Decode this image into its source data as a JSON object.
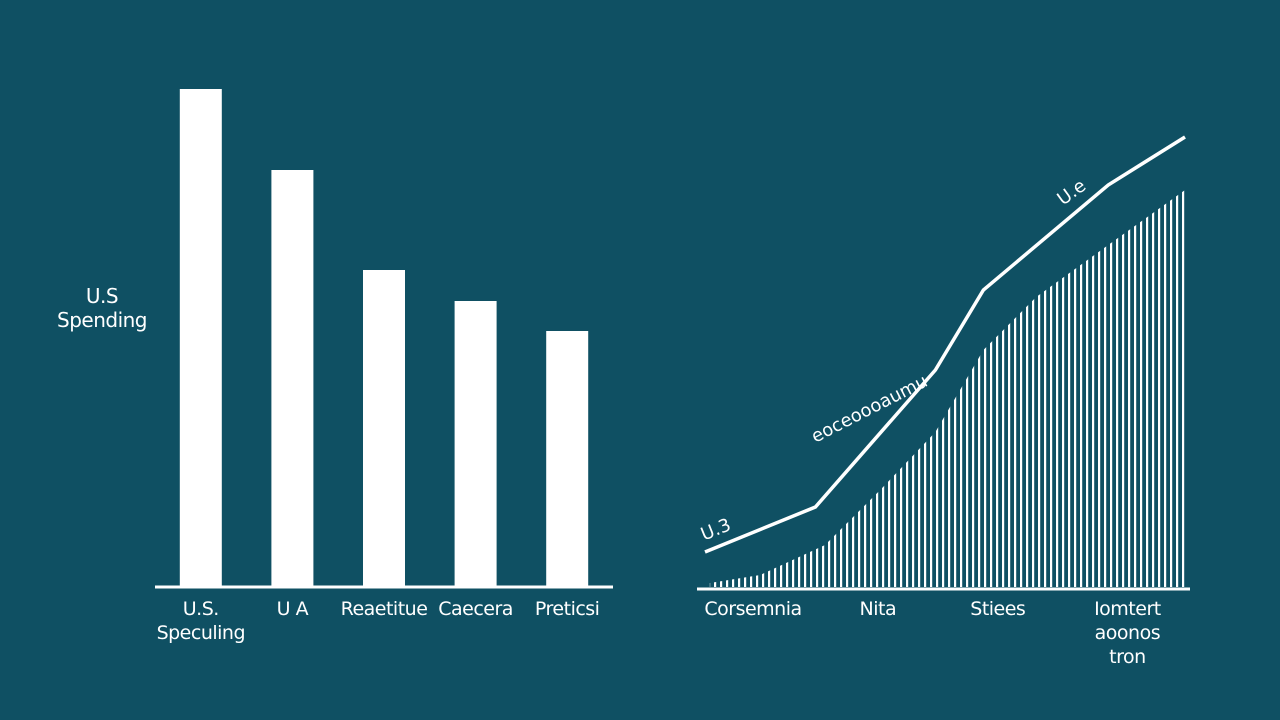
{
  "chart_data": [
    {
      "type": "bar",
      "y_label": "U.S\nSpending",
      "categories": [
        "U.S.\nSpeculing",
        "U A",
        "Reaetitue",
        "Caecera",
        "Preticsi"
      ],
      "values": [
        498,
        417,
        317,
        286,
        256
      ],
      "color": "#ffffff",
      "ylim": [
        0,
        520
      ]
    },
    {
      "type": "line",
      "annotations": [
        "U.3",
        "eoceoooaumu",
        "U.e"
      ],
      "xlim": [
        0,
        10
      ],
      "ylim": [
        0,
        520
      ],
      "xticks": [
        {
          "value": 1,
          "label": "Corsemnia"
        },
        {
          "value": 3.6,
          "label": "Nita"
        },
        {
          "value": 6.1,
          "label": "Stiees"
        },
        {
          "value": 8.8,
          "label": "Iomtert\naoonos\ntron"
        }
      ],
      "series": [
        {
          "color": "#ffffff",
          "area": false,
          "x": [
            0,
            2.3,
            4.8,
            5.8,
            8.4,
            10
          ],
          "values": [
            35,
            80,
            217,
            297,
            402,
            450
          ]
        },
        {
          "color": "#ffffff",
          "area": true,
          "x": [
            0.1,
            1.15,
            2.5,
            3.65,
            4.8,
            5.8,
            6.9,
            8.4,
            10
          ],
          "values": [
            4,
            12,
            42,
            97,
            155,
            237,
            290,
            342,
            397
          ]
        }
      ]
    }
  ]
}
